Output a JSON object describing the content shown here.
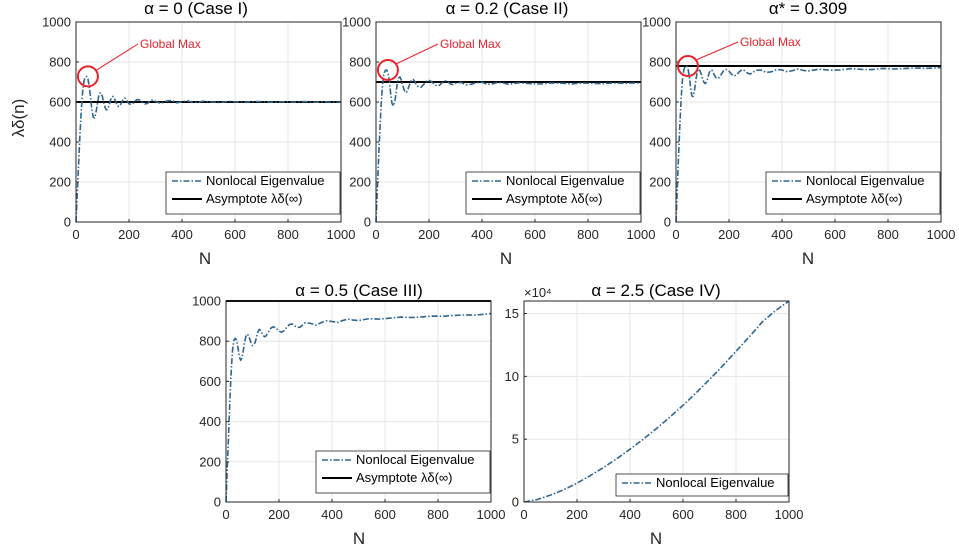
{
  "colors": {
    "series": "#2f6690",
    "asymptote": "#000000",
    "annotation": "#e8222b",
    "grid": "#e6e6e6",
    "axis": "#262626"
  },
  "chart_data": [
    {
      "type": "line",
      "title": "α = 0 (Case I)",
      "xlabel": "N",
      "ylabel": "λδ(n)",
      "xlim": [
        0,
        1000
      ],
      "ylim": [
        0,
        1000
      ],
      "xticks": [
        "0",
        "200",
        "400",
        "600",
        "800",
        "1000"
      ],
      "yticks": [
        "0",
        "200",
        "400",
        "600",
        "800",
        "1000"
      ],
      "grid": true,
      "legend": {
        "position": "bottom-right",
        "entries": [
          "Nonlocal Eigenvalue",
          "Asymptote λδ(∞)"
        ]
      },
      "annotation": {
        "text": "Global Max",
        "x": 45,
        "y": 728
      },
      "asymptote": 600,
      "series": [
        {
          "name": "Nonlocal Eigenvalue",
          "style": "dashdot",
          "x": [
            0,
            5,
            10,
            15,
            20,
            25,
            30,
            35,
            40,
            45,
            50,
            55,
            60,
            65,
            70,
            75,
            80,
            85,
            90,
            95,
            100,
            105,
            110,
            115,
            120,
            125,
            130,
            135,
            140,
            145,
            150,
            155,
            160,
            165,
            170,
            175,
            180,
            185,
            190,
            195,
            200,
            210,
            220,
            230,
            240,
            250,
            260,
            270,
            280,
            290,
            300,
            320,
            340,
            360,
            380,
            400,
            420,
            440,
            460,
            480,
            500,
            540,
            580,
            620,
            660,
            700,
            740,
            780,
            820,
            860,
            900,
            940,
            980,
            1000
          ],
          "y": [
            0,
            150,
            300,
            440,
            560,
            650,
            705,
            725,
            728,
            715,
            680,
            620,
            560,
            525,
            520,
            545,
            585,
            625,
            645,
            645,
            625,
            595,
            570,
            560,
            565,
            585,
            610,
            625,
            628,
            618,
            600,
            585,
            578,
            580,
            592,
            607,
            617,
            619,
            612,
            601,
            591,
            588,
            600,
            612,
            611,
            599,
            590,
            593,
            606,
            611,
            603,
            593,
            604,
            608,
            596,
            601,
            606,
            598,
            599,
            604,
            601,
            598,
            603,
            599,
            601,
            602,
            599,
            601,
            600,
            602,
            599,
            601,
            600,
            600
          ]
        }
      ]
    },
    {
      "type": "line",
      "title": "α = 0.2 (Case II)",
      "xlabel": "N",
      "ylabel": "",
      "xlim": [
        0,
        1000
      ],
      "ylim": [
        0,
        1000
      ],
      "xticks": [
        "0",
        "200",
        "400",
        "600",
        "800",
        "1000"
      ],
      "yticks": [
        "0",
        "200",
        "400",
        "600",
        "800",
        "1000"
      ],
      "grid": true,
      "legend": {
        "position": "bottom-right",
        "entries": [
          "Nonlocal Eigenvalue",
          "Asymptote λδ(∞)"
        ]
      },
      "annotation": {
        "text": "Global Max",
        "x": 45,
        "y": 760
      },
      "asymptote": 700,
      "series": [
        {
          "name": "Nonlocal Eigenvalue",
          "style": "dashdot",
          "x": [
            0,
            5,
            10,
            15,
            20,
            25,
            30,
            35,
            40,
            45,
            50,
            55,
            60,
            65,
            70,
            75,
            80,
            85,
            90,
            95,
            100,
            105,
            110,
            115,
            120,
            125,
            130,
            135,
            140,
            145,
            150,
            160,
            170,
            180,
            190,
            200,
            210,
            220,
            230,
            240,
            250,
            260,
            270,
            280,
            290,
            300,
            320,
            340,
            360,
            380,
            400,
            420,
            440,
            460,
            480,
            500,
            540,
            580,
            620,
            660,
            700,
            740,
            780,
            820,
            860,
            900,
            940,
            980,
            1000
          ],
          "y": [
            0,
            160,
            320,
            470,
            600,
            690,
            740,
            758,
            760,
            745,
            705,
            645,
            595,
            580,
            595,
            640,
            690,
            720,
            725,
            712,
            688,
            665,
            650,
            648,
            660,
            680,
            700,
            712,
            713,
            705,
            692,
            675,
            674,
            688,
            703,
            709,
            701,
            688,
            680,
            684,
            697,
            706,
            702,
            691,
            687,
            693,
            698,
            686,
            689,
            697,
            699,
            688,
            691,
            698,
            695,
            689,
            696,
            692,
            690,
            695,
            694,
            691,
            695,
            693,
            692,
            695,
            694,
            695,
            696
          ]
        }
      ]
    },
    {
      "type": "line",
      "title": "α* = 0.309",
      "xlabel": "N",
      "ylabel": "",
      "xlim": [
        0,
        1000
      ],
      "ylim": [
        0,
        1000
      ],
      "xticks": [
        "0",
        "200",
        "400",
        "600",
        "800",
        "1000"
      ],
      "yticks": [
        "0",
        "200",
        "400",
        "600",
        "800",
        "1000"
      ],
      "grid": true,
      "legend": {
        "position": "bottom-right",
        "entries": [
          "Nonlocal Eigenvalue",
          "Asymptote λδ(∞)"
        ]
      },
      "annotation": {
        "text": "Global Max",
        "x": 45,
        "y": 780
      },
      "asymptote": 780,
      "series": [
        {
          "name": "Nonlocal Eigenvalue",
          "style": "dashdot",
          "x": [
            0,
            5,
            10,
            15,
            20,
            25,
            30,
            35,
            40,
            45,
            50,
            55,
            60,
            65,
            70,
            75,
            80,
            85,
            90,
            95,
            100,
            105,
            110,
            115,
            120,
            125,
            130,
            135,
            140,
            145,
            150,
            160,
            170,
            180,
            190,
            200,
            210,
            220,
            230,
            240,
            250,
            260,
            270,
            280,
            290,
            300,
            320,
            340,
            360,
            380,
            400,
            420,
            440,
            460,
            480,
            500,
            540,
            580,
            620,
            660,
            700,
            740,
            780,
            820,
            860,
            900,
            940,
            980,
            1000
          ],
          "y": [
            0,
            170,
            340,
            500,
            630,
            720,
            765,
            778,
            780,
            768,
            730,
            670,
            630,
            628,
            660,
            710,
            750,
            765,
            758,
            740,
            718,
            700,
            692,
            700,
            720,
            745,
            758,
            760,
            750,
            735,
            722,
            718,
            736,
            757,
            763,
            754,
            738,
            730,
            738,
            753,
            762,
            756,
            744,
            740,
            747,
            758,
            760,
            748,
            751,
            763,
            760,
            751,
            757,
            765,
            758,
            755,
            764,
            759,
            760,
            767,
            763,
            762,
            768,
            765,
            767,
            770,
            768,
            770,
            772
          ]
        }
      ]
    },
    {
      "type": "line",
      "title": "α = 0.5 (Case III)",
      "xlabel": "N",
      "ylabel": "",
      "xlim": [
        0,
        1000
      ],
      "ylim": [
        0,
        1000
      ],
      "xticks": [
        "0",
        "200",
        "400",
        "600",
        "800",
        "1000"
      ],
      "yticks": [
        "0",
        "200",
        "400",
        "600",
        "800",
        "1000"
      ],
      "grid": true,
      "legend": {
        "position": "bottom-right",
        "entries": [
          "Nonlocal Eigenvalue",
          "Asymptote λδ(∞)"
        ]
      },
      "asymptote": 1000,
      "series": [
        {
          "name": "Nonlocal Eigenvalue",
          "style": "dashdot",
          "x": [
            0,
            5,
            10,
            15,
            20,
            25,
            30,
            35,
            40,
            45,
            50,
            55,
            60,
            65,
            70,
            75,
            80,
            85,
            90,
            95,
            100,
            105,
            110,
            115,
            120,
            125,
            130,
            135,
            140,
            145,
            150,
            160,
            170,
            180,
            190,
            200,
            210,
            220,
            230,
            240,
            250,
            260,
            270,
            280,
            290,
            300,
            320,
            340,
            360,
            380,
            400,
            420,
            440,
            460,
            480,
            500,
            540,
            580,
            620,
            660,
            700,
            740,
            780,
            820,
            860,
            900,
            940,
            980,
            1000
          ],
          "y": [
            0,
            170,
            350,
            520,
            660,
            760,
            805,
            815,
            805,
            770,
            725,
            705,
            715,
            750,
            795,
            825,
            835,
            828,
            810,
            790,
            778,
            780,
            795,
            820,
            845,
            858,
            855,
            843,
            830,
            822,
            825,
            845,
            866,
            872,
            863,
            850,
            845,
            853,
            870,
            883,
            885,
            876,
            868,
            870,
            882,
            893,
            888,
            880,
            893,
            902,
            898,
            893,
            903,
            910,
            905,
            903,
            912,
            910,
            915,
            920,
            918,
            921,
            925,
            924,
            928,
            931,
            930,
            935,
            938
          ]
        }
      ]
    },
    {
      "type": "line",
      "title": "α = 2.5 (Case IV)",
      "xlabel": "N",
      "ylabel": "",
      "xlim": [
        0,
        1000
      ],
      "ylim": [
        0,
        16
      ],
      "y_multiplier": "×10⁴",
      "xticks": [
        "0",
        "200",
        "400",
        "600",
        "800",
        "1000"
      ],
      "yticks": [
        "0",
        "5",
        "10",
        "15"
      ],
      "grid": true,
      "legend": {
        "position": "bottom-right",
        "entries": [
          "Nonlocal Eigenvalue"
        ]
      },
      "series": [
        {
          "name": "Nonlocal Eigenvalue",
          "style": "dashdot",
          "x": [
            0,
            50,
            100,
            150,
            200,
            250,
            300,
            350,
            400,
            450,
            500,
            550,
            600,
            650,
            700,
            750,
            800,
            850,
            900,
            950,
            1000
          ],
          "y": [
            0,
            0.2,
            0.55,
            0.98,
            1.5,
            2.1,
            2.75,
            3.45,
            4.2,
            5.0,
            5.85,
            6.75,
            7.7,
            8.7,
            9.75,
            10.85,
            12.0,
            13.15,
            14.35,
            15.25,
            16.0
          ]
        }
      ]
    }
  ]
}
